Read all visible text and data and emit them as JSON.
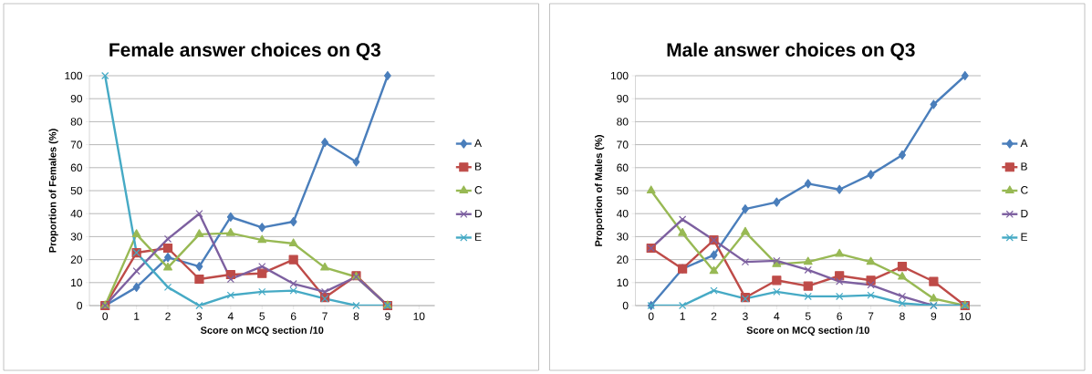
{
  "chart_data": [
    {
      "type": "line",
      "title": "Female answer choices on Q3",
      "xlabel": "Score on MCQ section /10",
      "ylabel": "Proportion of Females (%)",
      "categories": [
        "0",
        "1",
        "2",
        "3",
        "4",
        "5",
        "6",
        "7",
        "8",
        "9",
        "10"
      ],
      "ylim": [
        0,
        100
      ],
      "yticks": [
        0,
        10,
        20,
        30,
        40,
        50,
        60,
        70,
        80,
        90,
        100
      ],
      "grid": "y",
      "legend": "right",
      "line_style": "solid",
      "series": [
        {
          "name": "A",
          "color": "#4a7ebb",
          "marker": "diamond",
          "values": [
            0,
            8,
            21,
            17,
            38.5,
            34,
            36.5,
            71,
            62.5,
            100,
            null
          ]
        },
        {
          "name": "B",
          "color": "#be4b48",
          "marker": "square",
          "values": [
            0,
            23,
            25,
            11.5,
            13.5,
            14,
            20,
            3.5,
            13,
            0,
            null
          ]
        },
        {
          "name": "C",
          "color": "#98b954",
          "marker": "triangle",
          "values": [
            0,
            31,
            16.5,
            31,
            31.5,
            28.5,
            27,
            16.5,
            12.5,
            0,
            null
          ]
        },
        {
          "name": "D",
          "color": "#7d60a0",
          "marker": "cross",
          "values": [
            0,
            15,
            29,
            40,
            11.5,
            17,
            9.5,
            6,
            12.5,
            0,
            null
          ]
        },
        {
          "name": "E",
          "color": "#46aac5",
          "marker": "cross",
          "values": [
            100,
            23,
            8,
            0,
            4.5,
            6,
            6.5,
            3,
            0,
            0,
            null
          ]
        }
      ]
    },
    {
      "type": "line",
      "title": "Male answer choices on Q3",
      "xlabel": "Score on MCQ section /10",
      "ylabel": "Proportion of Males (%)",
      "categories": [
        "0",
        "1",
        "2",
        "3",
        "4",
        "5",
        "6",
        "7",
        "8",
        "9",
        "10"
      ],
      "ylim": [
        0,
        100
      ],
      "yticks": [
        0,
        10,
        20,
        30,
        40,
        50,
        60,
        70,
        80,
        90,
        100
      ],
      "grid": "y",
      "legend": "right",
      "line_style": "solid",
      "series": [
        {
          "name": "A",
          "color": "#4a7ebb",
          "marker": "diamond",
          "values": [
            0,
            16,
            22,
            42,
            45,
            53,
            50.5,
            57,
            65.5,
            87.5,
            100
          ]
        },
        {
          "name": "B",
          "color": "#be4b48",
          "marker": "square",
          "values": [
            25,
            16,
            28.5,
            3.5,
            11,
            8.5,
            13,
            11,
            17,
            10.5,
            0
          ]
        },
        {
          "name": "C",
          "color": "#98b954",
          "marker": "triangle",
          "values": [
            50,
            31.5,
            15,
            32,
            18,
            19,
            22.5,
            19,
            12.5,
            3,
            0
          ]
        },
        {
          "name": "D",
          "color": "#7d60a0",
          "marker": "cross",
          "values": [
            25,
            37.5,
            28.5,
            19,
            19.5,
            15.5,
            10.5,
            9,
            4,
            0,
            0
          ]
        },
        {
          "name": "E",
          "color": "#46aac5",
          "marker": "cross",
          "values": [
            0,
            0,
            6.5,
            3,
            6,
            4,
            4,
            4.5,
            1,
            0,
            0
          ]
        }
      ]
    }
  ]
}
